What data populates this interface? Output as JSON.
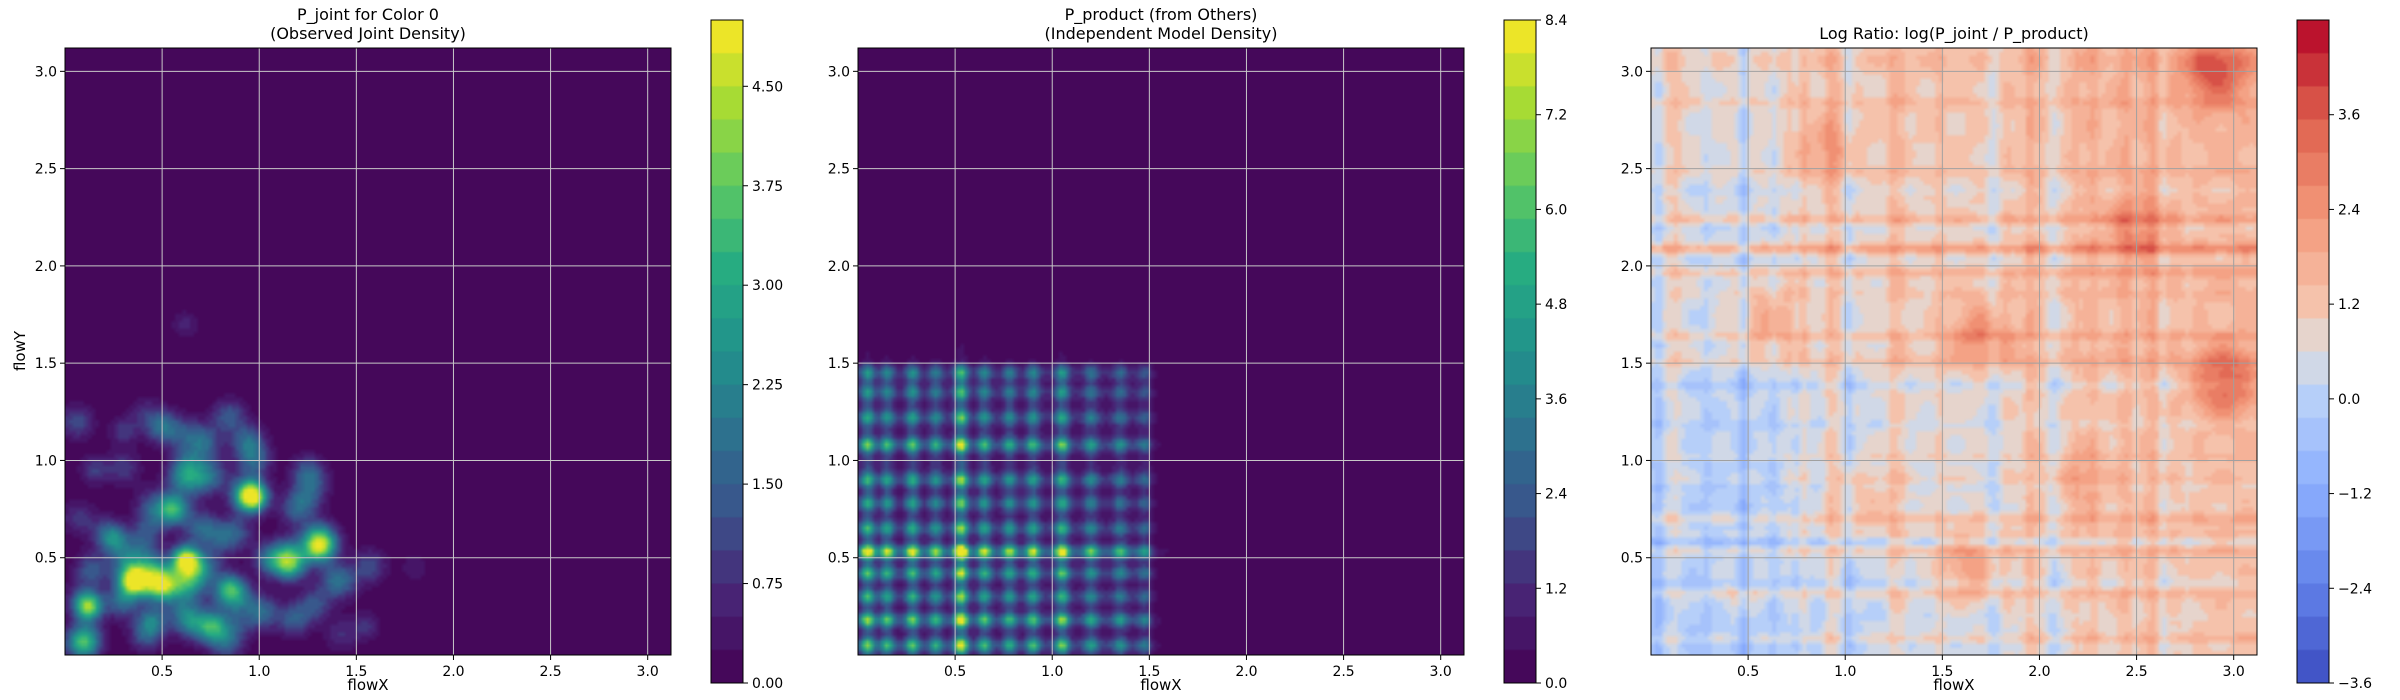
{
  "chart_data": [
    {
      "type": "heatmap",
      "title": [
        "P_joint for Color 0",
        "(Observed Joint Density)"
      ],
      "xlabel": "flowX",
      "ylabel": "flowY",
      "xlim": [
        0.0,
        3.12
      ],
      "ylim": [
        0.0,
        3.12
      ],
      "x_ticks": [
        "0.5",
        "1.0",
        "1.5",
        "2.0",
        "2.5",
        "3.0"
      ],
      "y_ticks": [
        "0.5",
        "1.0",
        "1.5",
        "2.0",
        "2.5",
        "3.0"
      ],
      "colormap": "viridis",
      "grid": true,
      "colorbar": {
        "min": 0.0,
        "max": 5.0,
        "levels": 20,
        "ticks": [
          "0.00",
          "0.75",
          "1.50",
          "2.25",
          "3.00",
          "3.75",
          "4.50"
        ]
      },
      "peaks": [
        {
          "x": 0.12,
          "y": 0.25,
          "value": 3.9
        },
        {
          "x": 0.35,
          "y": 0.38,
          "value": 3.4
        },
        {
          "x": 0.62,
          "y": 0.49,
          "value": 4.4
        },
        {
          "x": 0.97,
          "y": 0.81,
          "value": 3.5
        },
        {
          "x": 1.3,
          "y": 0.55,
          "value": 2.3
        },
        {
          "x": 0.85,
          "y": 0.35,
          "value": 2.0
        },
        {
          "x": 0.25,
          "y": 0.6,
          "value": 1.8
        },
        {
          "x": 0.55,
          "y": 0.75,
          "value": 1.6
        },
        {
          "x": 1.15,
          "y": 0.45,
          "value": 1.5
        },
        {
          "x": 0.45,
          "y": 0.18,
          "value": 1.6
        },
        {
          "x": 0.75,
          "y": 0.15,
          "value": 1.3
        },
        {
          "x": 0.3,
          "y": 1.15,
          "value": 0.9
        },
        {
          "x": 0.62,
          "y": 1.7,
          "value": 0.6
        },
        {
          "x": 1.55,
          "y": 0.15,
          "value": 0.8
        },
        {
          "x": 1.8,
          "y": 0.45,
          "value": 0.5
        },
        {
          "x": 0.15,
          "y": 0.95,
          "value": 1.0
        }
      ]
    },
    {
      "type": "heatmap",
      "title": [
        "P_product (from Others)",
        "(Independent Model Density)"
      ],
      "xlabel": "flowX",
      "ylabel": "",
      "xlim": [
        0.0,
        3.12
      ],
      "ylim": [
        0.0,
        3.12
      ],
      "x_ticks": [
        "0.5",
        "1.0",
        "1.5",
        "2.0",
        "2.5",
        "3.0"
      ],
      "y_ticks": [
        "0.5",
        "1.0",
        "1.5",
        "2.0",
        "2.5",
        "3.0"
      ],
      "colormap": "viridis",
      "grid": true,
      "colorbar": {
        "min": 0.0,
        "max": 8.4,
        "levels": 20,
        "ticks": [
          "0.0",
          "1.2",
          "2.4",
          "3.6",
          "4.8",
          "6.0",
          "7.2",
          "8.4"
        ]
      },
      "marginal_x_peaks": [
        {
          "x": 0.05,
          "w": 1.0
        },
        {
          "x": 0.15,
          "w": 0.8
        },
        {
          "x": 0.28,
          "w": 0.9
        },
        {
          "x": 0.4,
          "w": 0.7
        },
        {
          "x": 0.53,
          "w": 1.4
        },
        {
          "x": 0.65,
          "w": 0.8
        },
        {
          "x": 0.78,
          "w": 0.7
        },
        {
          "x": 0.9,
          "w": 0.8
        },
        {
          "x": 1.05,
          "w": 1.0
        },
        {
          "x": 1.2,
          "w": 0.6
        },
        {
          "x": 1.35,
          "w": 0.5
        },
        {
          "x": 1.48,
          "w": 0.4
        }
      ],
      "marginal_y_peaks": [
        {
          "y": 0.05,
          "w": 0.9
        },
        {
          "y": 0.18,
          "w": 1.0
        },
        {
          "y": 0.3,
          "w": 0.7
        },
        {
          "y": 0.42,
          "w": 0.8
        },
        {
          "y": 0.53,
          "w": 1.4
        },
        {
          "y": 0.65,
          "w": 0.7
        },
        {
          "y": 0.78,
          "w": 0.6
        },
        {
          "y": 0.9,
          "w": 0.7
        },
        {
          "y": 1.08,
          "w": 0.9
        },
        {
          "y": 1.22,
          "w": 0.6
        },
        {
          "y": 1.35,
          "w": 0.5
        },
        {
          "y": 1.45,
          "w": 0.5
        }
      ]
    },
    {
      "type": "heatmap",
      "title": [
        "Log Ratio: log(P_joint / P_product)"
      ],
      "xlabel": "flowX",
      "ylabel": "",
      "xlim": [
        0.0,
        3.12
      ],
      "ylim": [
        0.0,
        3.12
      ],
      "x_ticks": [
        "0.5",
        "1.0",
        "1.5",
        "2.0",
        "2.5",
        "3.0"
      ],
      "y_ticks": [
        "0.5",
        "1.0",
        "1.5",
        "2.0",
        "2.5",
        "3.0"
      ],
      "colormap": "coolwarm",
      "grid": true,
      "colorbar": {
        "min": -3.6,
        "max": 4.8,
        "levels": 20,
        "ticks": [
          "−3.6",
          "−2.4",
          "−1.2",
          "0.0",
          "1.2",
          "2.4",
          "3.6"
        ]
      },
      "ratio_hotspots": [
        {
          "x": 2.9,
          "y": 3.0,
          "value": 3.2
        },
        {
          "x": 2.95,
          "y": 1.4,
          "value": 3.0
        },
        {
          "x": 1.7,
          "y": 1.65,
          "value": 2.4
        },
        {
          "x": 0.6,
          "y": 1.72,
          "value": 2.0
        },
        {
          "x": 1.65,
          "y": 0.45,
          "value": 2.2
        },
        {
          "x": 0.9,
          "y": 2.6,
          "value": 1.6
        },
        {
          "x": 1.1,
          "y": 0.8,
          "value": 1.4
        },
        {
          "x": 2.5,
          "y": 2.2,
          "value": 1.8
        },
        {
          "x": 0.45,
          "y": 0.3,
          "value": 1.0
        },
        {
          "x": 2.2,
          "y": 0.9,
          "value": 1.2
        }
      ]
    }
  ]
}
